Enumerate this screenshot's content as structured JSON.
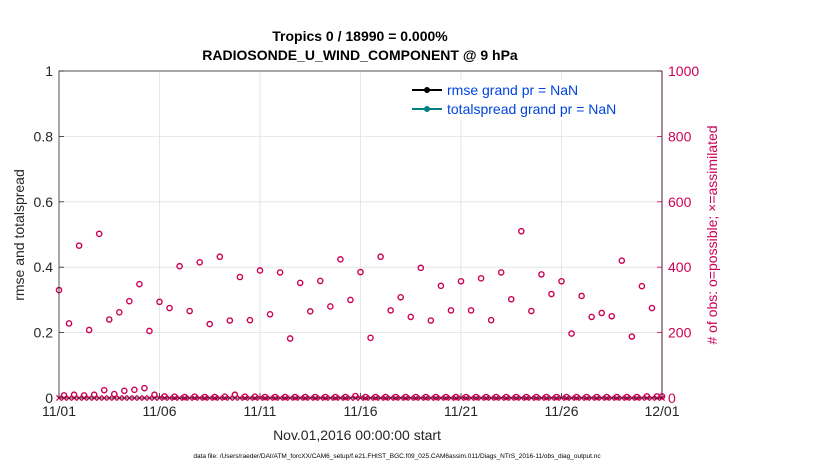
{
  "chart_data": {
    "type": "scatter",
    "title": "Tropics 0 / 18990 = 0.000%",
    "subtitle": "RADIOSONDE_U_WIND_COMPONENT @ 9 hPa",
    "xlabel": "Nov.01,2016 00:00:00 start",
    "ylabel_left": "rmse and totalspread",
    "ylabel_right": "# of obs: o=possible; ×=assimilated",
    "footer": "data file: /Users/raeder/DAI/ATM_forcXX/CAM6_setup/f.e21.FHIST_BGC.f09_025.CAM6assim.011/Diags_NTrS_2016-11/obs_diag_output.nc",
    "xlim": [
      0,
      30
    ],
    "ylim_left": [
      0,
      1
    ],
    "ylim_right": [
      0,
      1000
    ],
    "x_ticks": [
      0,
      5,
      10,
      15,
      20,
      25,
      30
    ],
    "x_tick_labels": [
      "11/01",
      "11/06",
      "11/11",
      "11/16",
      "11/21",
      "11/26",
      "12/01"
    ],
    "y_left_ticks": [
      0,
      0.2,
      0.4,
      0.6,
      0.8,
      1
    ],
    "y_left_tick_labels": [
      "0",
      "0.2",
      "0.4",
      "0.6",
      "0.8",
      "1"
    ],
    "y_right_ticks": [
      0,
      200,
      400,
      600,
      800,
      1000
    ],
    "y_right_tick_labels": [
      "0",
      "200",
      "400",
      "600",
      "800",
      "1000"
    ],
    "grid": true,
    "legend_position": "top-right",
    "legend": [
      {
        "label": "rmse grand pr = NaN",
        "color": "#000000"
      },
      {
        "label": "totalspread grand pr = NaN",
        "color": "#008080"
      }
    ],
    "colors": {
      "right_axis": "#cc0055",
      "legend_text": "#0044dd"
    },
    "series_possible": {
      "x": [
        0,
        0.25,
        0.5,
        0.75,
        1,
        1.25,
        1.5,
        1.75,
        2,
        2.25,
        2.5,
        2.75,
        3,
        3.25,
        3.5,
        3.75,
        4,
        4.25,
        4.5,
        4.75,
        5,
        5.25,
        5.5,
        5.75,
        6,
        6.25,
        6.5,
        6.75,
        7,
        7.25,
        7.5,
        7.75,
        8,
        8.25,
        8.5,
        8.75,
        9,
        9.25,
        9.5,
        9.75,
        10,
        10.25,
        10.5,
        10.75,
        11,
        11.25,
        11.5,
        11.75,
        12,
        12.25,
        12.5,
        12.75,
        13,
        13.25,
        13.5,
        13.75,
        14,
        14.25,
        14.5,
        14.75,
        15,
        15.25,
        15.5,
        15.75,
        16,
        16.25,
        16.5,
        16.75,
        17,
        17.25,
        17.5,
        17.75,
        18,
        18.25,
        18.5,
        18.75,
        19,
        19.25,
        19.5,
        19.75,
        20,
        20.25,
        20.5,
        20.75,
        21,
        21.25,
        21.5,
        21.75,
        22,
        22.25,
        22.5,
        22.75,
        23,
        23.25,
        23.5,
        23.75,
        24,
        24.25,
        24.5,
        24.75,
        25,
        25.25,
        25.5,
        25.75,
        26,
        26.25,
        26.5,
        26.75,
        27,
        27.25,
        27.5,
        27.75,
        28,
        28.25,
        28.5,
        28.75,
        29,
        29.25,
        29.5,
        29.75,
        30
      ],
      "y": [
        330,
        8,
        228,
        10,
        466,
        8,
        208,
        10,
        502,
        24,
        240,
        12,
        262,
        22,
        296,
        25,
        348,
        30,
        205,
        10,
        294,
        5,
        275,
        4,
        403,
        3,
        266,
        4,
        415,
        3,
        226,
        3,
        432,
        4,
        237,
        10,
        370,
        4,
        238,
        4,
        390,
        3,
        256,
        3,
        384,
        3,
        182,
        3,
        352,
        3,
        265,
        3,
        358,
        3,
        280,
        3,
        424,
        3,
        300,
        6,
        385,
        3,
        184,
        3,
        432,
        3,
        268,
        3,
        308,
        3,
        248,
        3,
        398,
        3,
        237,
        3,
        343,
        3,
        268,
        3,
        357,
        3,
        268,
        3,
        366,
        3,
        238,
        3,
        384,
        3,
        302,
        3,
        510,
        3,
        266,
        3,
        378,
        3,
        318,
        3,
        357,
        3,
        197,
        3,
        312,
        3,
        248,
        3,
        260,
        3,
        250,
        3,
        420,
        3,
        188,
        3,
        342,
        5,
        275,
        5,
        5
      ]
    },
    "series_assimilated": {
      "x": [
        0,
        0.25,
        0.5,
        0.75,
        1,
        1.25,
        1.5,
        1.75,
        2,
        2.25,
        2.5,
        2.75,
        3,
        3.25,
        3.5,
        3.75,
        4,
        4.25,
        4.5,
        4.75,
        5,
        5.25,
        5.5,
        5.75,
        6,
        6.25,
        6.5,
        6.75,
        7,
        7.25,
        7.5,
        7.75,
        8,
        8.25,
        8.5,
        8.75,
        9,
        9.25,
        9.5,
        9.75,
        10,
        10.25,
        10.5,
        10.75,
        11,
        11.25,
        11.5,
        11.75,
        12,
        12.25,
        12.5,
        12.75,
        13,
        13.25,
        13.5,
        13.75,
        14,
        14.25,
        14.5,
        14.75,
        15,
        15.25,
        15.5,
        15.75,
        16,
        16.25,
        16.5,
        16.75,
        17,
        17.25,
        17.5,
        17.75,
        18,
        18.25,
        18.5,
        18.75,
        19,
        19.25,
        19.5,
        19.75,
        20,
        20.25,
        20.5,
        20.75,
        21,
        21.25,
        21.5,
        21.75,
        22,
        22.25,
        22.5,
        22.75,
        23,
        23.25,
        23.5,
        23.75,
        24,
        24.25,
        24.5,
        24.75,
        25,
        25.25,
        25.5,
        25.75,
        26,
        26.25,
        26.5,
        26.75,
        27,
        27.25,
        27.5,
        27.75,
        28,
        28.25,
        28.5,
        28.75,
        29,
        29.25,
        29.5,
        29.75,
        30
      ],
      "y": [
        0,
        0,
        0,
        0,
        0,
        0,
        0,
        0,
        0,
        0,
        0,
        0,
        0,
        0,
        0,
        0,
        0,
        0,
        0,
        0,
        0,
        0,
        0,
        0,
        0,
        0,
        0,
        0,
        0,
        0,
        0,
        0,
        0,
        0,
        0,
        0,
        0,
        0,
        0,
        0,
        0,
        0,
        0,
        0,
        0,
        0,
        0,
        0,
        0,
        0,
        0,
        0,
        0,
        0,
        0,
        0,
        0,
        0,
        0,
        0,
        0,
        0,
        0,
        0,
        0,
        0,
        0,
        0,
        0,
        0,
        0,
        0,
        0,
        0,
        0,
        0,
        0,
        0,
        0,
        0,
        0,
        0,
        0,
        0,
        0,
        0,
        0,
        0,
        0,
        0,
        0,
        0,
        0,
        0,
        0,
        0,
        0,
        0,
        0,
        0,
        0,
        0,
        0,
        0,
        0,
        0,
        0,
        0,
        0,
        0,
        0,
        0,
        0,
        0,
        0,
        0,
        0,
        0,
        0,
        0,
        0
      ]
    }
  }
}
